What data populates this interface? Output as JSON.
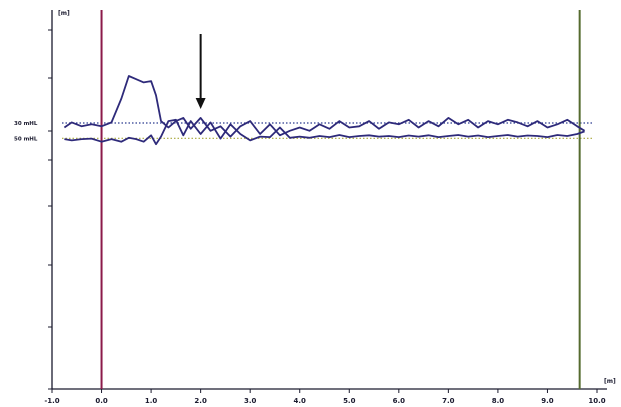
{
  "chart_data": {
    "type": "line",
    "title": "",
    "xlabel": "",
    "ylabel": "",
    "x_unit": "[m]",
    "y_unit": "[m]",
    "xlim": [
      -1.0,
      10.0
    ],
    "x_ticks": [
      -1.0,
      0.0,
      1.0,
      2.0,
      3.0,
      4.0,
      5.0,
      6.0,
      7.0,
      8.0,
      9.0,
      10.0
    ],
    "x_tick_labels": [
      "-1.0",
      "0.0",
      "1.0",
      "2.0",
      "3.0",
      "4.0",
      "5.0",
      "6.0",
      "7.0",
      "8.0",
      "9.0",
      "10.0"
    ],
    "ylim": [
      -1.0,
      0.2
    ],
    "grid": false,
    "reference_lines": [
      {
        "label": "30 mHL",
        "y": 0.017,
        "color": "#2b3a8f",
        "style": "dotted"
      },
      {
        "label": "50 mHL",
        "y": -0.017,
        "color": "#a8a83a",
        "style": "dotted"
      }
    ],
    "vertical_markers": [
      {
        "x": 0.0,
        "color": "#8b1a4a"
      },
      {
        "x": 9.65,
        "color": "#556b2f"
      }
    ],
    "annotations": [
      {
        "type": "arrow",
        "x": 2.0,
        "direction": "down"
      }
    ],
    "series": [
      {
        "color": "#2e2a7a",
        "x": [
          -0.75,
          -0.6,
          -0.4,
          -0.2,
          0.0,
          0.2,
          0.4,
          0.55,
          0.7,
          0.85,
          1.0,
          1.1,
          1.2,
          1.35,
          1.5,
          1.65,
          1.8,
          2.0,
          2.2,
          2.4,
          2.6,
          2.8,
          3.0,
          3.2,
          3.4,
          3.6,
          3.8,
          4.0,
          4.2,
          4.4,
          4.6,
          4.8,
          5.0,
          5.2,
          5.4,
          5.6,
          5.8,
          6.0,
          6.2,
          6.4,
          6.6,
          6.8,
          7.0,
          7.2,
          7.4,
          7.6,
          7.8,
          8.0,
          8.2,
          8.4,
          8.6,
          8.8,
          9.0,
          9.2,
          9.4,
          9.6,
          9.75
        ],
        "y": [
          0.01,
          0.018,
          0.012,
          0.015,
          0.012,
          0.018,
          0.055,
          0.09,
          0.085,
          0.08,
          0.082,
          0.06,
          0.02,
          0.01,
          0.02,
          0.025,
          0.008,
          0.025,
          0.005,
          0.012,
          -0.01,
          0.012,
          0.02,
          0.0,
          0.015,
          -0.005,
          0.005,
          0.01,
          0.005,
          0.015,
          0.008,
          0.02,
          0.01,
          0.012,
          0.02,
          0.008,
          0.018,
          0.015,
          0.022,
          0.01,
          0.02,
          0.012,
          0.025,
          0.015,
          0.022,
          0.01,
          0.02,
          0.015,
          0.022,
          0.018,
          0.012,
          0.02,
          0.01,
          0.015,
          0.022,
          0.012,
          0.005
        ]
      },
      {
        "color": "#2e2a7a",
        "x": [
          -0.75,
          -0.6,
          -0.4,
          -0.2,
          0.0,
          0.2,
          0.4,
          0.55,
          0.7,
          0.85,
          1.0,
          1.1,
          1.2,
          1.35,
          1.5,
          1.65,
          1.8,
          2.0,
          2.2,
          2.4,
          2.6,
          2.8,
          3.0,
          3.2,
          3.4,
          3.6,
          3.8,
          4.0,
          4.2,
          4.4,
          4.6,
          4.8,
          5.0,
          5.2,
          5.4,
          5.6,
          5.8,
          6.0,
          6.2,
          6.4,
          6.6,
          6.8,
          7.0,
          7.2,
          7.4,
          7.6,
          7.8,
          8.0,
          8.2,
          8.4,
          8.6,
          8.8,
          9.0,
          9.2,
          9.4,
          9.6,
          9.75
        ],
        "y": [
          -0.02,
          -0.025,
          -0.02,
          -0.018,
          -0.03,
          -0.02,
          -0.03,
          -0.015,
          -0.02,
          -0.03,
          -0.005,
          -0.04,
          -0.01,
          0.02,
          0.022,
          -0.005,
          0.02,
          0.0,
          0.018,
          -0.018,
          0.015,
          0.0,
          -0.025,
          -0.01,
          -0.012,
          0.01,
          -0.015,
          -0.01,
          -0.015,
          -0.008,
          -0.012,
          -0.004,
          -0.012,
          -0.008,
          -0.005,
          -0.01,
          -0.008,
          -0.012,
          -0.006,
          -0.01,
          -0.005,
          -0.012,
          -0.008,
          -0.004,
          -0.01,
          -0.006,
          -0.012,
          -0.008,
          -0.004,
          -0.01,
          -0.006,
          -0.008,
          -0.012,
          -0.004,
          -0.008,
          0.0,
          0.004
        ]
      }
    ]
  }
}
